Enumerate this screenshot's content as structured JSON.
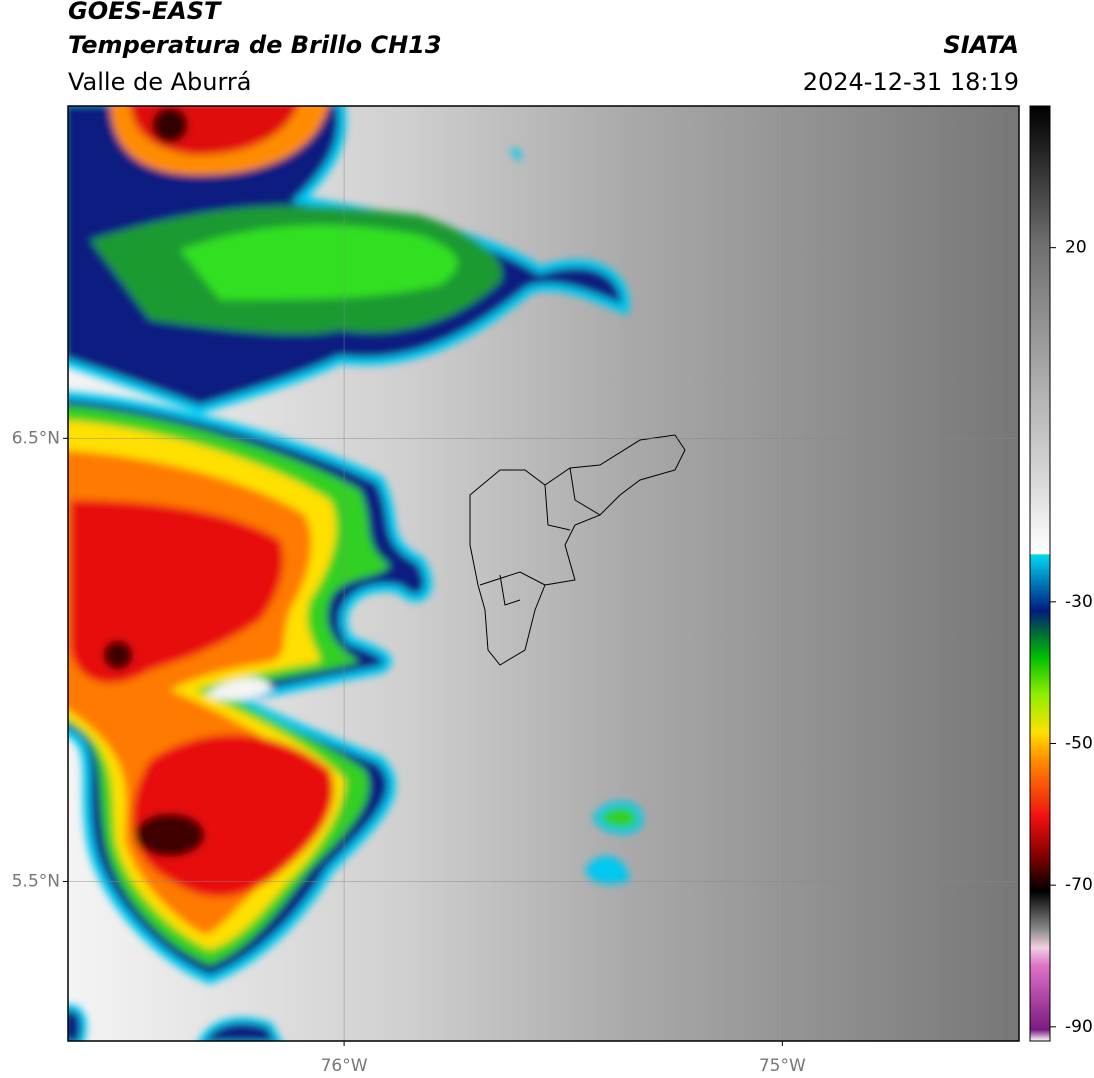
{
  "header": {
    "title": "GOES-EAST",
    "subtitle": "Temperatura de Brillo CH13",
    "region": "Valle de Aburrá",
    "source": "SIATA",
    "timestamp": "2024-12-31 18:19"
  },
  "map": {
    "xlim": [
      -76.63,
      -74.46
    ],
    "ylim": [
      5.14,
      7.25
    ],
    "xticks": [
      {
        "value": -76,
        "label": "76°W"
      },
      {
        "value": -75,
        "label": "75°W"
      }
    ],
    "yticks": [
      {
        "value": 5.5,
        "label": "5.5°N"
      },
      {
        "value": 6.5,
        "label": "6.5°N"
      }
    ],
    "grid": true
  },
  "colorbar": {
    "lim": [
      -92,
      40
    ],
    "ticks": [
      20,
      -30,
      -50,
      -70,
      -90
    ]
  }
}
